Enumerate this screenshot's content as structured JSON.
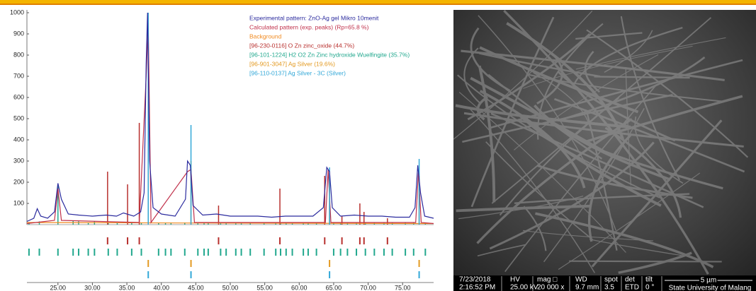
{
  "chart_data": {
    "type": "line",
    "xlim": [
      20.5,
      79.5
    ],
    "ylim": [
      0,
      1000
    ],
    "xticks": [
      {
        "value": 25,
        "label": "25.00"
      },
      {
        "value": 30,
        "label": "30.00"
      },
      {
        "value": 35,
        "label": "35.00"
      },
      {
        "value": 40,
        "label": "40.00"
      },
      {
        "value": 45,
        "label": "45.00"
      },
      {
        "value": 50,
        "label": "50.00"
      },
      {
        "value": 55,
        "label": "55.00"
      },
      {
        "value": 60,
        "label": "60.00"
      },
      {
        "value": 65,
        "label": "65.00"
      },
      {
        "value": 70,
        "label": "70.00"
      },
      {
        "value": 75,
        "label": "75.00"
      }
    ],
    "yticks": [
      100,
      200,
      300,
      400,
      500,
      600,
      700,
      800,
      900,
      1000
    ],
    "series": [
      {
        "name": "Experimental pattern: ZnO-Ag gel Mikro 10menit",
        "type": "line",
        "color": "#2b2b9e",
        "x": [
          20.5,
          21.5,
          22,
          22.5,
          23.5,
          24.5,
          25,
          25.5,
          26.5,
          28,
          30,
          32,
          33.5,
          34.5,
          36,
          37,
          37.5,
          37.8,
          38,
          38.3,
          38.8,
          40,
          42,
          43.5,
          43.8,
          44.2,
          44.6,
          46,
          48,
          50,
          52,
          54,
          56,
          58,
          60,
          62,
          63.5,
          64,
          64.4,
          64.8,
          66,
          68,
          70,
          72,
          74,
          76,
          76.8,
          77.2,
          77.6,
          78.2,
          79.5
        ],
        "values": [
          15,
          30,
          75,
          40,
          30,
          60,
          195,
          120,
          50,
          45,
          40,
          45,
          40,
          55,
          40,
          60,
          150,
          760,
          1000,
          300,
          80,
          50,
          40,
          120,
          300,
          280,
          90,
          45,
          50,
          40,
          40,
          40,
          35,
          40,
          40,
          40,
          80,
          270,
          250,
          80,
          40,
          45,
          40,
          40,
          35,
          35,
          80,
          280,
          150,
          40,
          30
        ]
      },
      {
        "name": "Calculated pattern (exp. peaks) (Rp=65.8 %)",
        "type": "line",
        "color": "#c0304a",
        "x": [
          20.5,
          24.5,
          25,
          25.5,
          36.8,
          37.8,
          38.1,
          38.5,
          43.8,
          44.3,
          44.8,
          63.8,
          64.2,
          64.6,
          76.9,
          77.3,
          77.7,
          79.5
        ],
        "values": [
          5,
          20,
          170,
          20,
          10,
          700,
          950,
          10,
          250,
          260,
          10,
          10,
          260,
          10,
          10,
          250,
          10,
          5
        ]
      },
      {
        "name": "Background",
        "type": "line",
        "color": "#f08a20",
        "x": [
          20.5,
          50,
          79.5
        ],
        "values": [
          10,
          7,
          5
        ]
      },
      {
        "name": "[96-230-0116] O Zn zinc_oxide (44.7%)",
        "type": "stick",
        "color": "#b8302e",
        "x": [
          32.2,
          35.1,
          36.8,
          48.3,
          57.2,
          63.7,
          66.2,
          68.8,
          69.4,
          72.8
        ],
        "values": [
          250,
          190,
          480,
          90,
          170,
          230,
          40,
          100,
          60,
          30
        ]
      },
      {
        "name": "[96-101-1224] H2 O2 Zn Zinc hydroxide Wuelfingite (35.7%)",
        "type": "stick",
        "color": "#22a88e",
        "x": [
          20.8,
          22.3,
          25,
          27.2,
          28,
          29.4,
          30.3,
          32.3,
          33.6,
          35.7,
          37.1,
          39.6,
          40.6,
          41.4,
          43.4,
          45.3,
          46.2,
          46.8,
          48.6,
          49.4,
          50.8,
          51.6,
          52.9,
          54.9,
          56.6,
          57.3,
          58.1,
          59,
          60.6,
          61.3,
          62.5,
          65,
          66,
          67,
          68.3,
          69.6,
          70.9,
          72.3,
          73.5,
          75.4,
          76.6,
          78.3
        ],
        "values": [
          10,
          15,
          190,
          20,
          15,
          10,
          15,
          10,
          10,
          10,
          10,
          10,
          10,
          10,
          10,
          10,
          10,
          10,
          10,
          10,
          10,
          10,
          10,
          10,
          10,
          10,
          10,
          10,
          10,
          10,
          10,
          10,
          10,
          10,
          10,
          10,
          10,
          10,
          10,
          10,
          10,
          10
        ]
      },
      {
        "name": "[96-901-3047] Ag Silver (19.6%)",
        "type": "stick",
        "color": "#e39a22",
        "x": [
          38.1,
          44.3,
          64.4,
          77.4
        ],
        "values": [
          580,
          300,
          200,
          230
        ]
      },
      {
        "name": "[96-110-0137] Ag Silver - 3C (Silver)",
        "type": "stick",
        "color": "#33a8d8",
        "x": [
          38.1,
          44.3,
          64.4,
          77.4
        ],
        "values": [
          1000,
          470,
          270,
          310
        ]
      }
    ]
  },
  "sem_image": {
    "info_bar": {
      "headers": [
        "7/23/2018",
        "HV",
        "mag □",
        "WD",
        "spot",
        "det",
        "tilt"
      ],
      "values": [
        "2:16:52 PM",
        "25.00 kV",
        "20 000 x",
        "9.7 mm",
        "3.5",
        "ETD",
        "0 °"
      ],
      "scale_bar": "5 µm",
      "institution": "State University of Malang"
    }
  }
}
